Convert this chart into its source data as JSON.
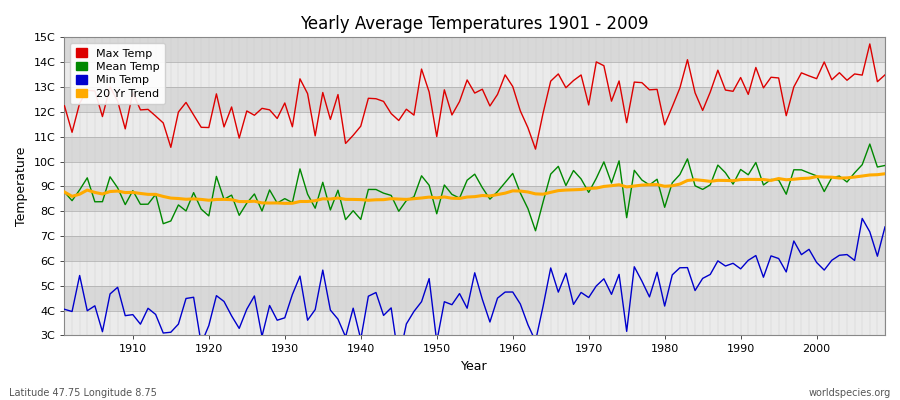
{
  "title": "Yearly Average Temperatures 1901 - 2009",
  "xlabel": "Year",
  "ylabel": "Temperature",
  "footer_left": "Latitude 47.75 Longitude 8.75",
  "footer_right": "worldspecies.org",
  "start_year": 1901,
  "end_year": 2009,
  "ylim": [
    3,
    15
  ],
  "yticks": [
    3,
    4,
    5,
    6,
    7,
    8,
    9,
    10,
    11,
    12,
    13,
    14,
    15
  ],
  "ytick_labels": [
    "3C",
    "4C",
    "5C",
    "6C",
    "7C",
    "8C",
    "9C",
    "10C",
    "11C",
    "12C",
    "13C",
    "14C",
    "15C"
  ],
  "xticks": [
    1910,
    1920,
    1930,
    1940,
    1950,
    1960,
    1970,
    1980,
    1990,
    2000
  ],
  "colors": {
    "max": "#dd0000",
    "mean": "#008800",
    "min": "#0000cc",
    "trend": "#ffaa00",
    "bg_light": "#ebebeb",
    "bg_dark": "#d8d8d8",
    "grid_line": "#cccccc"
  },
  "legend": [
    {
      "label": "Max Temp",
      "color": "#dd0000"
    },
    {
      "label": "Mean Temp",
      "color": "#008800"
    },
    {
      "label": "Min Temp",
      "color": "#0000cc"
    },
    {
      "label": "20 Yr Trend",
      "color": "#ffaa00"
    }
  ]
}
